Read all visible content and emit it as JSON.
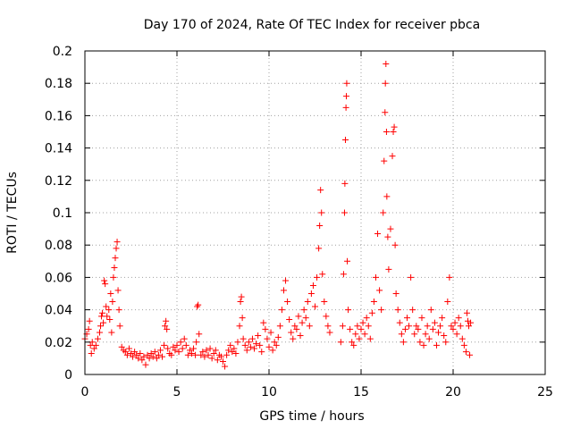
{
  "chart_data": {
    "type": "scatter",
    "title": "Day 170 of 2024, Rate Of TEC Index for receiver pbca",
    "xlabel": "GPS time / hours",
    "ylabel": "ROTI / TECUs",
    "xlim": [
      0,
      25
    ],
    "ylim": [
      0,
      0.2
    ],
    "xticks": [
      0,
      5,
      10,
      15,
      20,
      25
    ],
    "xtick_labels": [
      "0",
      "5",
      "10",
      "15",
      "20",
      "25"
    ],
    "yticks": [
      0,
      0.02,
      0.04,
      0.06,
      0.08,
      0.1,
      0.12,
      0.14,
      0.16,
      0.18,
      0.2
    ],
    "ytick_labels": [
      "0",
      "0.02",
      "0.04",
      "0.06",
      "0.08",
      "0.1",
      "0.12",
      "0.14",
      "0.16",
      "0.18",
      "0.2"
    ],
    "grid": true,
    "marker": "plus",
    "color": "#ff0000",
    "series": [
      {
        "points": [
          [
            0.0,
            0.022
          ],
          [
            0.1,
            0.025
          ],
          [
            0.2,
            0.028
          ],
          [
            0.25,
            0.033
          ],
          [
            0.3,
            0.018
          ],
          [
            0.35,
            0.013
          ],
          [
            0.4,
            0.02
          ],
          [
            0.5,
            0.016
          ],
          [
            0.6,
            0.018
          ],
          [
            0.7,
            0.022
          ],
          [
            0.8,
            0.026
          ],
          [
            0.85,
            0.03
          ],
          [
            0.9,
            0.036
          ],
          [
            0.95,
            0.038
          ],
          [
            1.0,
            0.032
          ],
          [
            1.05,
            0.058
          ],
          [
            1.1,
            0.056
          ],
          [
            1.15,
            0.042
          ],
          [
            1.2,
            0.036
          ],
          [
            1.3,
            0.04
          ],
          [
            1.35,
            0.034
          ],
          [
            1.4,
            0.05
          ],
          [
            1.45,
            0.026
          ],
          [
            1.5,
            0.045
          ],
          [
            1.55,
            0.06
          ],
          [
            1.6,
            0.066
          ],
          [
            1.65,
            0.072
          ],
          [
            1.7,
            0.078
          ],
          [
            1.75,
            0.082
          ],
          [
            1.8,
            0.052
          ],
          [
            1.85,
            0.04
          ],
          [
            1.9,
            0.03
          ],
          [
            2.0,
            0.017
          ],
          [
            2.1,
            0.015
          ],
          [
            2.2,
            0.014
          ],
          [
            2.3,
            0.012
          ],
          [
            2.4,
            0.016
          ],
          [
            2.5,
            0.013
          ],
          [
            2.6,
            0.011
          ],
          [
            2.7,
            0.014
          ],
          [
            2.8,
            0.012
          ],
          [
            2.9,
            0.01
          ],
          [
            3.0,
            0.013
          ],
          [
            3.1,
            0.009
          ],
          [
            3.2,
            0.011
          ],
          [
            3.3,
            0.006
          ],
          [
            3.4,
            0.012
          ],
          [
            3.5,
            0.01
          ],
          [
            3.6,
            0.013
          ],
          [
            3.7,
            0.011
          ],
          [
            3.8,
            0.014
          ],
          [
            3.9,
            0.01
          ],
          [
            4.0,
            0.012
          ],
          [
            4.1,
            0.015
          ],
          [
            4.2,
            0.011
          ],
          [
            4.3,
            0.018
          ],
          [
            4.35,
            0.03
          ],
          [
            4.4,
            0.033
          ],
          [
            4.45,
            0.028
          ],
          [
            4.5,
            0.016
          ],
          [
            4.6,
            0.013
          ],
          [
            4.7,
            0.012
          ],
          [
            4.8,
            0.017
          ],
          [
            4.9,
            0.015
          ],
          [
            5.0,
            0.018
          ],
          [
            5.1,
            0.014
          ],
          [
            5.2,
            0.02
          ],
          [
            5.3,
            0.016
          ],
          [
            5.4,
            0.022
          ],
          [
            5.5,
            0.018
          ],
          [
            5.6,
            0.012
          ],
          [
            5.7,
            0.015
          ],
          [
            5.8,
            0.013
          ],
          [
            5.9,
            0.016
          ],
          [
            6.0,
            0.012
          ],
          [
            6.05,
            0.02
          ],
          [
            6.1,
            0.042
          ],
          [
            6.15,
            0.043
          ],
          [
            6.2,
            0.025
          ],
          [
            6.3,
            0.012
          ],
          [
            6.4,
            0.014
          ],
          [
            6.5,
            0.011
          ],
          [
            6.6,
            0.015
          ],
          [
            6.7,
            0.012
          ],
          [
            6.8,
            0.016
          ],
          [
            6.9,
            0.01
          ],
          [
            7.0,
            0.013
          ],
          [
            7.1,
            0.015
          ],
          [
            7.2,
            0.009
          ],
          [
            7.3,
            0.012
          ],
          [
            7.4,
            0.011
          ],
          [
            7.5,
            0.008
          ],
          [
            7.6,
            0.005
          ],
          [
            7.7,
            0.012
          ],
          [
            7.8,
            0.015
          ],
          [
            7.9,
            0.018
          ],
          [
            8.0,
            0.014
          ],
          [
            8.1,
            0.016
          ],
          [
            8.2,
            0.013
          ],
          [
            8.3,
            0.02
          ],
          [
            8.4,
            0.03
          ],
          [
            8.45,
            0.045
          ],
          [
            8.5,
            0.048
          ],
          [
            8.55,
            0.035
          ],
          [
            8.6,
            0.022
          ],
          [
            8.7,
            0.018
          ],
          [
            8.8,
            0.015
          ],
          [
            8.9,
            0.02
          ],
          [
            9.0,
            0.017
          ],
          [
            9.1,
            0.022
          ],
          [
            9.2,
            0.016
          ],
          [
            9.3,
            0.019
          ],
          [
            9.4,
            0.024
          ],
          [
            9.5,
            0.018
          ],
          [
            9.6,
            0.014
          ],
          [
            9.7,
            0.032
          ],
          [
            9.8,
            0.028
          ],
          [
            9.9,
            0.022
          ],
          [
            10.0,
            0.017
          ],
          [
            10.1,
            0.026
          ],
          [
            10.2,
            0.015
          ],
          [
            10.3,
            0.02
          ],
          [
            10.4,
            0.018
          ],
          [
            10.5,
            0.023
          ],
          [
            10.6,
            0.03
          ],
          [
            10.7,
            0.04
          ],
          [
            10.8,
            0.052
          ],
          [
            10.9,
            0.058
          ],
          [
            11.0,
            0.045
          ],
          [
            11.1,
            0.034
          ],
          [
            11.2,
            0.026
          ],
          [
            11.3,
            0.022
          ],
          [
            11.4,
            0.03
          ],
          [
            11.5,
            0.028
          ],
          [
            11.6,
            0.036
          ],
          [
            11.7,
            0.024
          ],
          [
            11.8,
            0.032
          ],
          [
            11.9,
            0.04
          ],
          [
            12.0,
            0.035
          ],
          [
            12.1,
            0.045
          ],
          [
            12.2,
            0.03
          ],
          [
            12.3,
            0.05
          ],
          [
            12.4,
            0.055
          ],
          [
            12.5,
            0.042
          ],
          [
            12.6,
            0.06
          ],
          [
            12.7,
            0.078
          ],
          [
            12.75,
            0.092
          ],
          [
            12.8,
            0.114
          ],
          [
            12.85,
            0.1
          ],
          [
            12.9,
            0.062
          ],
          [
            13.0,
            0.045
          ],
          [
            13.1,
            0.036
          ],
          [
            13.2,
            0.03
          ],
          [
            13.3,
            0.026
          ],
          [
            13.9,
            0.02
          ],
          [
            14.0,
            0.03
          ],
          [
            14.05,
            0.062
          ],
          [
            14.1,
            0.1
          ],
          [
            14.12,
            0.118
          ],
          [
            14.15,
            0.145
          ],
          [
            14.18,
            0.165
          ],
          [
            14.2,
            0.172
          ],
          [
            14.22,
            0.18
          ],
          [
            14.25,
            0.07
          ],
          [
            14.3,
            0.04
          ],
          [
            14.4,
            0.028
          ],
          [
            14.5,
            0.02
          ],
          [
            14.6,
            0.018
          ],
          [
            14.7,
            0.025
          ],
          [
            14.8,
            0.03
          ],
          [
            14.9,
            0.022
          ],
          [
            15.0,
            0.028
          ],
          [
            15.1,
            0.032
          ],
          [
            15.2,
            0.025
          ],
          [
            15.3,
            0.035
          ],
          [
            15.4,
            0.03
          ],
          [
            15.5,
            0.022
          ],
          [
            15.6,
            0.038
          ],
          [
            15.7,
            0.045
          ],
          [
            15.8,
            0.06
          ],
          [
            15.9,
            0.087
          ],
          [
            16.0,
            0.052
          ],
          [
            16.1,
            0.04
          ],
          [
            16.2,
            0.1
          ],
          [
            16.25,
            0.132
          ],
          [
            16.3,
            0.162
          ],
          [
            16.32,
            0.18
          ],
          [
            16.35,
            0.192
          ],
          [
            16.38,
            0.15
          ],
          [
            16.4,
            0.11
          ],
          [
            16.45,
            0.085
          ],
          [
            16.5,
            0.065
          ],
          [
            16.6,
            0.09
          ],
          [
            16.7,
            0.135
          ],
          [
            16.75,
            0.15
          ],
          [
            16.8,
            0.153
          ],
          [
            16.85,
            0.08
          ],
          [
            16.9,
            0.05
          ],
          [
            17.0,
            0.04
          ],
          [
            17.1,
            0.032
          ],
          [
            17.2,
            0.025
          ],
          [
            17.3,
            0.02
          ],
          [
            17.4,
            0.028
          ],
          [
            17.5,
            0.035
          ],
          [
            17.6,
            0.03
          ],
          [
            17.7,
            0.06
          ],
          [
            17.8,
            0.04
          ],
          [
            17.9,
            0.025
          ],
          [
            18.0,
            0.03
          ],
          [
            18.1,
            0.028
          ],
          [
            18.2,
            0.02
          ],
          [
            18.3,
            0.035
          ],
          [
            18.4,
            0.018
          ],
          [
            18.5,
            0.025
          ],
          [
            18.6,
            0.03
          ],
          [
            18.7,
            0.022
          ],
          [
            18.8,
            0.04
          ],
          [
            18.9,
            0.028
          ],
          [
            19.0,
            0.032
          ],
          [
            19.1,
            0.018
          ],
          [
            19.2,
            0.026
          ],
          [
            19.3,
            0.03
          ],
          [
            19.4,
            0.035
          ],
          [
            19.5,
            0.024
          ],
          [
            19.6,
            0.02
          ],
          [
            19.7,
            0.045
          ],
          [
            19.8,
            0.06
          ],
          [
            19.9,
            0.03
          ],
          [
            20.0,
            0.028
          ],
          [
            20.1,
            0.032
          ],
          [
            20.2,
            0.025
          ],
          [
            20.3,
            0.035
          ],
          [
            20.4,
            0.03
          ],
          [
            20.5,
            0.022
          ],
          [
            20.6,
            0.018
          ],
          [
            20.7,
            0.014
          ],
          [
            20.75,
            0.038
          ],
          [
            20.8,
            0.033
          ],
          [
            20.85,
            0.03
          ],
          [
            20.9,
            0.012
          ],
          [
            20.95,
            0.032
          ]
        ]
      }
    ]
  }
}
